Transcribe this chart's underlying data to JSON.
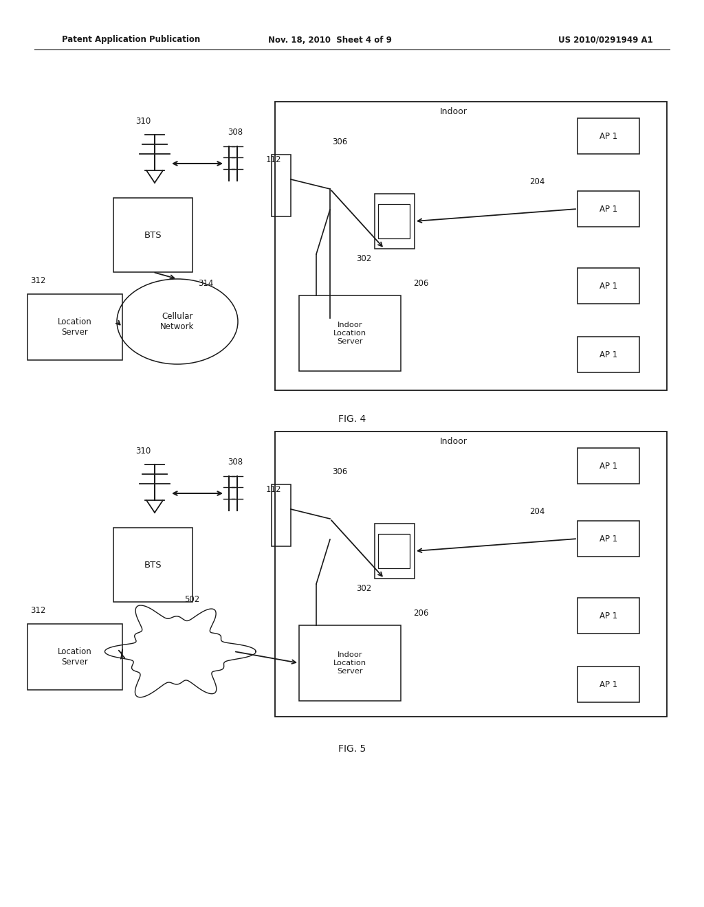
{
  "header_left": "Patent Application Publication",
  "header_mid": "Nov. 18, 2010  Sheet 4 of 9",
  "header_right": "US 2010/0291949 A1",
  "bg_color": "#ffffff",
  "line_color": "#1a1a1a",
  "fig4_label": "FIG. 4",
  "fig5_label": "FIG. 5"
}
